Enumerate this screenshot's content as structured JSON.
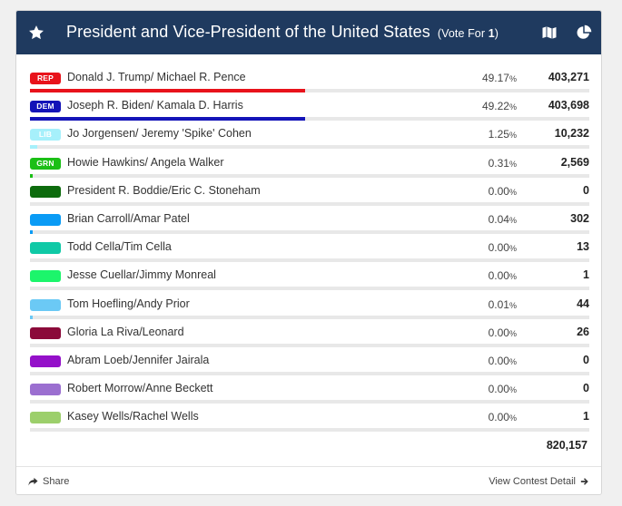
{
  "contest": {
    "title": "President and Vice-President of the United States",
    "vote_for_prefix": "(Vote For ",
    "vote_for_count": "1",
    "vote_for_suffix": ")",
    "icons": {
      "favorite": "star-icon",
      "map": "map-icon",
      "chart": "pie-chart-icon"
    }
  },
  "candidates": [
    {
      "party": "REP",
      "name": "Donald J. Trump/ Michael R. Pence",
      "pct": "49.17",
      "pct_symbol": "%",
      "votes": "403,271",
      "share": 0.4917,
      "color": "#e8131b"
    },
    {
      "party": "DEM",
      "name": "Joseph R. Biden/ Kamala D. Harris",
      "pct": "49.22",
      "pct_symbol": "%",
      "votes": "403,698",
      "share": 0.4922,
      "color": "#1414b8"
    },
    {
      "party": "LIB",
      "name": "Jo Jorgensen/ Jeremy 'Spike' Cohen",
      "pct": "1.25",
      "pct_symbol": "%",
      "votes": "10,232",
      "share": 0.0125,
      "color": "#a6f0fb"
    },
    {
      "party": "GRN",
      "name": "Howie Hawkins/ Angela Walker",
      "pct": "0.31",
      "pct_symbol": "%",
      "votes": "2,569",
      "share": 0.0031,
      "color": "#1bbf16"
    },
    {
      "party": "",
      "name": "President R. Boddie/Eric C. Stoneham",
      "pct": "0.00",
      "pct_symbol": "%",
      "votes": "0",
      "share": 0,
      "color": "#0d6b0d"
    },
    {
      "party": "",
      "name": "Brian Carroll/Amar Patel",
      "pct": "0.04",
      "pct_symbol": "%",
      "votes": "302",
      "share": 0.0004,
      "color": "#0a9bf5"
    },
    {
      "party": "",
      "name": "Todd Cella/Tim Cella",
      "pct": "0.00",
      "pct_symbol": "%",
      "votes": "13",
      "share": 0,
      "color": "#0fc9a6"
    },
    {
      "party": "",
      "name": "Jesse Cuellar/Jimmy Monreal",
      "pct": "0.00",
      "pct_symbol": "%",
      "votes": "1",
      "share": 0,
      "color": "#1cf56b"
    },
    {
      "party": "",
      "name": "Tom Hoefling/Andy Prior",
      "pct": "0.01",
      "pct_symbol": "%",
      "votes": "44",
      "share": 0.0001,
      "color": "#6bc9f5"
    },
    {
      "party": "",
      "name": "Gloria La Riva/Leonard",
      "pct": "0.00",
      "pct_symbol": "%",
      "votes": "26",
      "share": 0,
      "color": "#8b0a3a"
    },
    {
      "party": "",
      "name": "Abram Loeb/Jennifer Jairala",
      "pct": "0.00",
      "pct_symbol": "%",
      "votes": "0",
      "share": 0,
      "color": "#9410c9"
    },
    {
      "party": "",
      "name": "Robert Morrow/Anne Beckett",
      "pct": "0.00",
      "pct_symbol": "%",
      "votes": "0",
      "share": 0,
      "color": "#9b6fd0"
    },
    {
      "party": "",
      "name": "Kasey Wells/Rachel Wells",
      "pct": "0.00",
      "pct_symbol": "%",
      "votes": "1",
      "share": 0,
      "color": "#9ccf6b"
    }
  ],
  "total_votes": "820,157",
  "footer": {
    "share_label": "Share",
    "detail_label": "View Contest Detail"
  }
}
